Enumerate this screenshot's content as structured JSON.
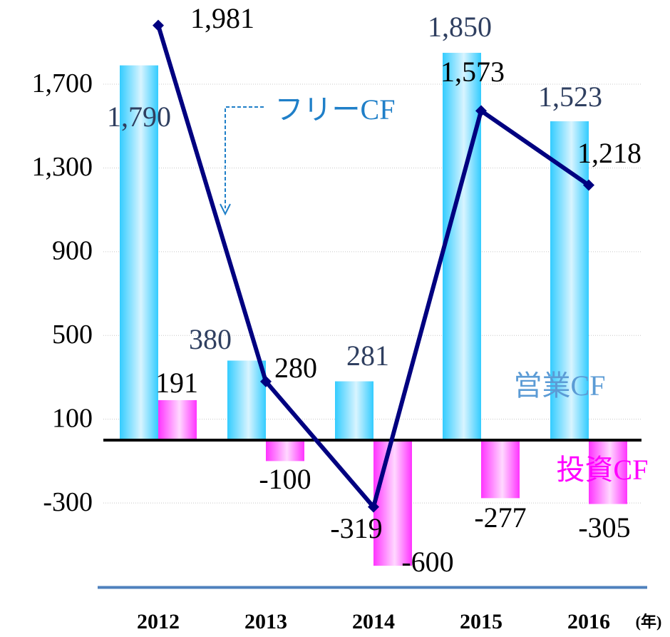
{
  "chart_data": {
    "type": "bar-line",
    "categories": [
      "2012",
      "2013",
      "2014",
      "2015",
      "2016"
    ],
    "x_unit": "(年)",
    "series": [
      {
        "name": "営業CF",
        "type": "bar",
        "color": "#33ccff",
        "values": [
          1790,
          380,
          281,
          1850,
          1523
        ],
        "value_labels": [
          "1,790",
          "380",
          "281",
          "1,850",
          "1,523"
        ]
      },
      {
        "name": "投資CF",
        "type": "bar",
        "color": "#ff33ff",
        "values": [
          191,
          -100,
          -600,
          -277,
          -305
        ],
        "value_labels": [
          "191",
          "-100",
          "-600",
          "-277",
          "-305"
        ]
      },
      {
        "name": "フリーCF",
        "type": "line",
        "color": "#000080",
        "values": [
          1981,
          280,
          -319,
          1573,
          1218
        ],
        "value_labels": [
          "1,981",
          "280",
          "-319",
          "1,573",
          "1,218"
        ]
      }
    ],
    "ylim": [
      -700,
      2100
    ],
    "yticks": [
      -300,
      100,
      500,
      900,
      {
        "value": 1300,
        "label": "1,300"
      },
      {
        "value": 1700,
        "label": "1,700"
      }
    ],
    "grid": true
  }
}
